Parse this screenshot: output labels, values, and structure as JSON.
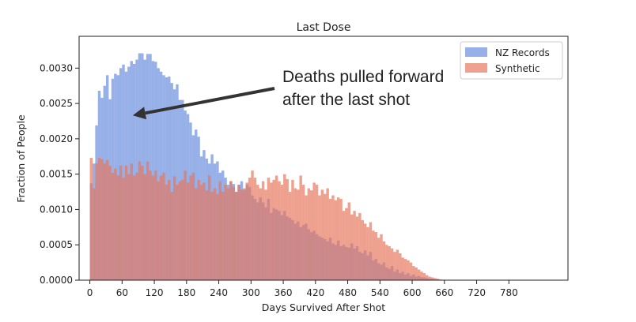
{
  "chart_data": {
    "type": "histogram",
    "title": "Last Dose",
    "xlabel": "Days Survived After Shot",
    "ylabel": "Fraction of People",
    "xlim": [
      -20,
      890
    ],
    "ylim": [
      0,
      0.00345
    ],
    "grid": false,
    "legend_position": "top-right",
    "x_ticks": [
      0,
      60,
      120,
      180,
      240,
      300,
      360,
      420,
      480,
      540,
      600,
      660,
      720,
      780
    ],
    "y_ticks": [
      0.0,
      0.0005,
      0.001,
      0.0015,
      0.002,
      0.0025,
      0.003
    ],
    "y_tick_labels": [
      "0.0000",
      "0.0005",
      "0.0010",
      "0.0015",
      "0.0020",
      "0.0025",
      "0.0030"
    ],
    "bin_start": 0,
    "bin_width": 5,
    "series": [
      {
        "name": "NZ Records",
        "color": "#6f93df",
        "opacity": 0.72,
        "values": [
          0.00137,
          0.00165,
          0.00219,
          0.00268,
          0.00258,
          0.00275,
          0.0029,
          0.00256,
          0.00285,
          0.00292,
          0.0029,
          0.003,
          0.00305,
          0.00295,
          0.00302,
          0.0031,
          0.00306,
          0.00312,
          0.00321,
          0.00321,
          0.00312,
          0.0032,
          0.0032,
          0.0031,
          0.00309,
          0.003,
          0.00295,
          0.0029,
          0.00287,
          0.00288,
          0.00279,
          0.0027,
          0.00277,
          0.00255,
          0.00255,
          0.0024,
          0.00235,
          0.00223,
          0.00205,
          0.00213,
          0.00203,
          0.00175,
          0.00184,
          0.00172,
          0.00165,
          0.00178,
          0.00165,
          0.00168,
          0.00152,
          0.00155,
          0.00145,
          0.00135,
          0.0014,
          0.00136,
          0.00125,
          0.00135,
          0.0014,
          0.00128,
          0.00135,
          0.00132,
          0.0012,
          0.00115,
          0.0011,
          0.00117,
          0.0011,
          0.00103,
          0.00115,
          0.00095,
          0.00102,
          0.001,
          0.00098,
          0.00092,
          0.00098,
          0.0009,
          0.00088,
          0.00085,
          0.0008,
          0.00083,
          0.00075,
          0.00078,
          0.0008,
          0.00072,
          0.00068,
          0.0007,
          0.00065,
          0.00062,
          0.0006,
          0.00058,
          0.00055,
          0.0006,
          0.00052,
          0.0005,
          0.00056,
          0.00048,
          0.0005,
          0.00047,
          0.00046,
          0.00052,
          0.00045,
          0.00048,
          0.0004,
          0.00038,
          0.00042,
          0.00035,
          0.0004,
          0.00028,
          0.0003,
          0.00024,
          0.00022,
          0.00025,
          0.00018,
          0.00016,
          0.0002,
          0.00012,
          0.00015,
          0.0001,
          0.00012,
          8e-05,
          0.0001,
          6e-05,
          8e-05,
          5e-05,
          6e-05,
          4e-05,
          4e-05,
          3e-05,
          2e-05,
          2e-05,
          1e-05,
          1e-05
        ]
      },
      {
        "name": "Synthetic",
        "color": "#e8745c",
        "opacity": 0.68,
        "values": [
          0.00173,
          0.0013,
          0.00165,
          0.00173,
          0.00171,
          0.00165,
          0.0017,
          0.00162,
          0.00152,
          0.00158,
          0.00148,
          0.00162,
          0.00145,
          0.00162,
          0.0015,
          0.00165,
          0.00148,
          0.00152,
          0.00168,
          0.00162,
          0.0015,
          0.00168,
          0.00155,
          0.00148,
          0.00155,
          0.0014,
          0.00148,
          0.00152,
          0.00135,
          0.00142,
          0.00125,
          0.00147,
          0.00135,
          0.0014,
          0.00142,
          0.00155,
          0.00138,
          0.00148,
          0.00152,
          0.0013,
          0.00142,
          0.00135,
          0.00138,
          0.00127,
          0.00148,
          0.00125,
          0.0013,
          0.00122,
          0.0014,
          0.00125,
          0.00135,
          0.0013,
          0.0014,
          0.00132,
          0.00125,
          0.00135,
          0.00128,
          0.0013,
          0.00138,
          0.00145,
          0.00155,
          0.00145,
          0.00135,
          0.0013,
          0.0014,
          0.00128,
          0.00145,
          0.00138,
          0.00142,
          0.00148,
          0.0014,
          0.00135,
          0.0015,
          0.00143,
          0.00125,
          0.00142,
          0.0013,
          0.00128,
          0.00148,
          0.00135,
          0.0012,
          0.0013,
          0.00127,
          0.00138,
          0.00135,
          0.0012,
          0.00128,
          0.00122,
          0.0013,
          0.00115,
          0.0012,
          0.00113,
          0.00117,
          0.00115,
          0.00098,
          0.00102,
          0.0011,
          0.00093,
          0.00098,
          0.0009,
          0.00095,
          0.00085,
          0.0008,
          0.00075,
          0.00082,
          0.0007,
          0.00068,
          0.0006,
          0.00065,
          0.00055,
          0.0005,
          0.00048,
          0.00045,
          0.0004,
          0.00043,
          0.00038,
          0.00032,
          0.0003,
          0.00028,
          0.00025,
          0.0002,
          0.00018,
          0.00015,
          0.00012,
          0.0001,
          7e-05,
          5e-05,
          4e-05,
          3e-05,
          2e-05,
          1e-05
        ]
      }
    ],
    "annotation": {
      "lines": [
        "Deaths pulled forward",
        "after the last shot"
      ],
      "arrow_target": {
        "x": 80,
        "y": 0.00233
      }
    }
  }
}
